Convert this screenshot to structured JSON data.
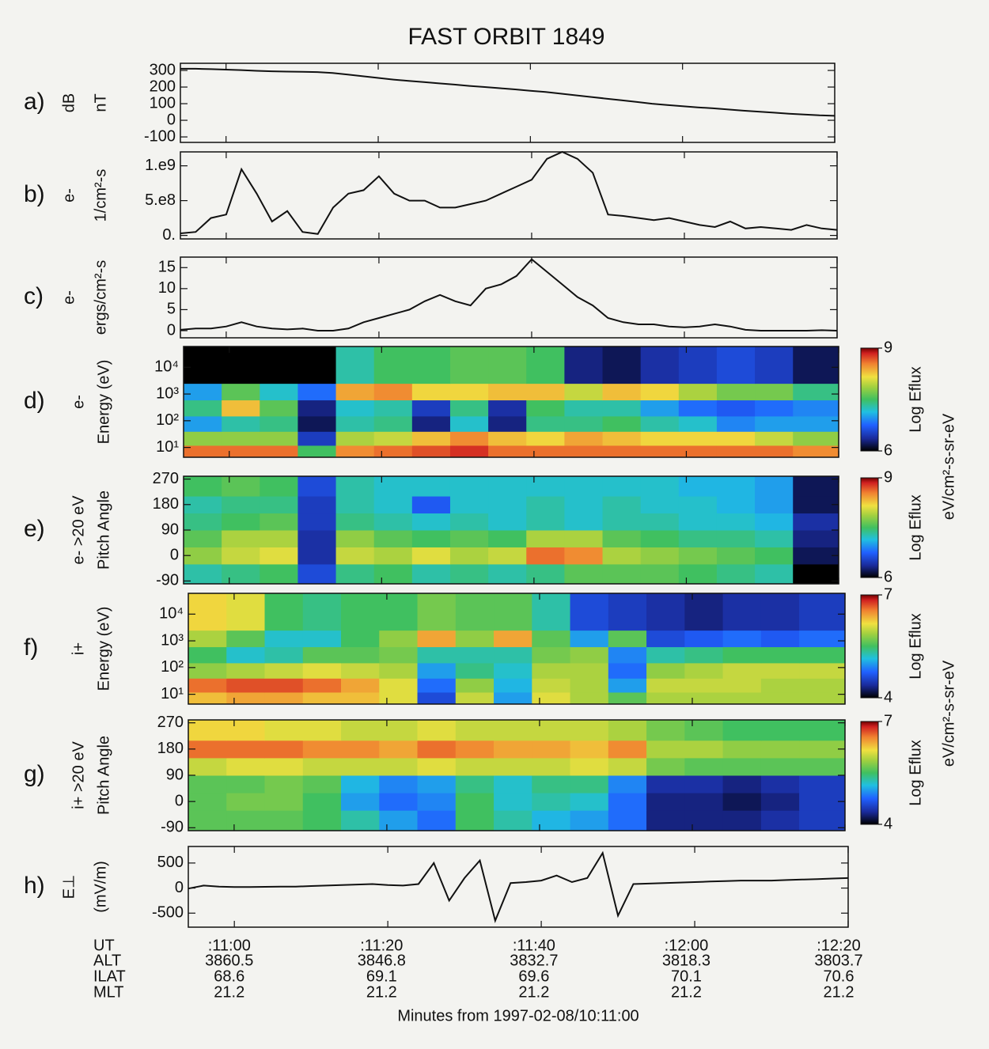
{
  "title": "FAST ORBIT 1849",
  "x_label": "Minutes from 1997-02-08/10:11:00",
  "time_axis": {
    "xlim": [
      -6,
      80
    ],
    "ticks": [
      {
        "value": 0,
        "label": ":11:00"
      },
      {
        "value": 20,
        "label": ":11:20"
      },
      {
        "value": 40,
        "label": ":11:40"
      },
      {
        "value": 60,
        "label": ":12:00"
      },
      {
        "value": 80,
        "label": ":12:20"
      }
    ],
    "row_labels": [
      "UT",
      "ALT",
      "ILAT",
      "MLT"
    ],
    "rows": [
      [
        3860.5,
        3846.8,
        3832.7,
        3818.3,
        3803.7
      ],
      [
        68.6,
        69.1,
        69.6,
        70.1,
        70.6
      ],
      [
        21.2,
        21.2,
        21.2,
        21.2,
        21.2
      ]
    ]
  },
  "chart_data": [
    {
      "type": "line",
      "label": "a)",
      "quantity": "dB",
      "ylabel": "nT",
      "color": "#111111",
      "xlim": [
        -6,
        80
      ],
      "ylim": [
        -133,
        343
      ],
      "yticks": [
        300,
        200,
        100,
        0,
        -100
      ],
      "x": [
        -6,
        -4,
        -2,
        0,
        2,
        4,
        6,
        8,
        10,
        12,
        14,
        16,
        18,
        20,
        22,
        24,
        26,
        28,
        30,
        32,
        34,
        36,
        38,
        40,
        42,
        44,
        46,
        48,
        50,
        52,
        54,
        56,
        58,
        60,
        62,
        64,
        66,
        68,
        70,
        72,
        74,
        76,
        78,
        80
      ],
      "values": [
        310,
        310,
        308,
        305,
        302,
        298,
        295,
        293,
        292,
        290,
        285,
        275,
        265,
        255,
        245,
        237,
        230,
        222,
        215,
        207,
        200,
        193,
        186,
        178,
        170,
        160,
        150,
        140,
        130,
        120,
        110,
        100,
        92,
        85,
        78,
        72,
        65,
        58,
        52,
        46,
        40,
        35,
        30,
        27
      ]
    },
    {
      "type": "line",
      "label": "b)",
      "quantity": "e-",
      "ylabel": "1/cm²-s",
      "color": "#111111",
      "xlim": [
        -6,
        80
      ],
      "ylim": [
        -50000000,
        1200000000
      ],
      "yticks": [
        {
          "value": 1000000000,
          "label": "1.e9"
        },
        {
          "value": 500000000,
          "label": "5.e8"
        },
        {
          "value": 0,
          "label": "0."
        }
      ],
      "x": [
        -6,
        -4,
        -2,
        0,
        2,
        4,
        6,
        8,
        10,
        12,
        14,
        16,
        18,
        20,
        22,
        24,
        26,
        28,
        30,
        32,
        34,
        36,
        38,
        40,
        42,
        44,
        46,
        48,
        50,
        52,
        54,
        56,
        58,
        60,
        62,
        64,
        66,
        68,
        70,
        72,
        74,
        76,
        78,
        80
      ],
      "values": [
        30000000.0,
        50000000.0,
        250000000.0,
        300000000.0,
        950000000.0,
        600000000.0,
        200000000.0,
        350000000.0,
        50000000.0,
        20000000.0,
        400000000.0,
        600000000.0,
        650000000.0,
        850000000.0,
        600000000.0,
        500000000.0,
        500000000.0,
        400000000.0,
        400000000.0,
        450000000.0,
        500000000.0,
        600000000.0,
        700000000.0,
        800000000.0,
        1100000000.0,
        1200000000.0,
        1100000000.0,
        900000000.0,
        300000000.0,
        280000000.0,
        250000000.0,
        220000000.0,
        250000000.0,
        200000000.0,
        150000000.0,
        120000000.0,
        200000000.0,
        100000000.0,
        120000000.0,
        100000000.0,
        80000000.0,
        150000000.0,
        100000000.0,
        80000000.0
      ]
    },
    {
      "type": "line",
      "label": "c)",
      "quantity": "e-",
      "ylabel": "ergs/cm²-s",
      "color": "#111111",
      "xlim": [
        -6,
        80
      ],
      "ylim": [
        -1.7,
        17.5
      ],
      "yticks": [
        15,
        10,
        5,
        0
      ],
      "x": [
        -6,
        -4,
        -2,
        0,
        2,
        4,
        6,
        8,
        10,
        12,
        14,
        16,
        18,
        20,
        22,
        24,
        26,
        28,
        30,
        32,
        34,
        36,
        38,
        40,
        42,
        44,
        46,
        48,
        50,
        52,
        54,
        56,
        58,
        60,
        62,
        64,
        66,
        68,
        70,
        72,
        74,
        76,
        78,
        80
      ],
      "values": [
        0.2,
        0.5,
        0.5,
        1,
        2,
        1,
        0.5,
        0.3,
        0.5,
        0,
        0,
        0.5,
        2,
        3,
        4,
        5,
        7,
        8.5,
        7,
        6,
        10,
        11,
        13,
        17,
        14,
        11,
        8,
        6,
        3,
        2,
        1.5,
        1.5,
        1,
        0.8,
        1,
        1.5,
        1,
        0.2,
        0,
        0,
        0,
        0,
        0.1,
        0
      ]
    },
    {
      "type": "heatmap",
      "label": "d)",
      "quantity": "e-",
      "ylabel": "Energy (eV)",
      "colorbar_label": "Log Eflux",
      "colorbar_units": "eV/cm²-s-sr-eV",
      "xlim": [
        -6,
        80
      ],
      "ylim": [
        4.3,
        60000
      ],
      "ylog": true,
      "yticks": [
        {
          "value": 10000,
          "label": "10⁴"
        },
        {
          "value": 1000,
          "label": "10³"
        },
        {
          "value": 100,
          "label": "10²"
        },
        {
          "value": 10,
          "label": "10¹"
        }
      ],
      "clim": [
        6,
        9
      ],
      "cticks": [
        9,
        6
      ],
      "xbins": [
        -6,
        -1,
        4,
        9,
        14,
        19,
        24,
        29,
        34,
        39,
        44,
        49,
        54,
        59,
        64,
        69,
        74,
        80
      ],
      "ybins": [
        4.3,
        12,
        40,
        150,
        600,
        2500,
        60000
      ],
      "z": [
        [
          8.6,
          8.6,
          8.6,
          7.5,
          8.5,
          8.6,
          8.7,
          8.8,
          8.6,
          8.6,
          8.6,
          8.6,
          8.6,
          8.6,
          8.6,
          8.6,
          8.5
        ],
        [
          7.8,
          7.8,
          7.8,
          6.5,
          7.9,
          8.0,
          8.3,
          8.5,
          8.3,
          8.2,
          8.4,
          8.3,
          8.2,
          8.2,
          8.2,
          8.0,
          7.8
        ],
        [
          7.0,
          7.3,
          7.4,
          6.2,
          7.3,
          7.4,
          6.3,
          7.2,
          6.3,
          7.4,
          7.4,
          7.5,
          7.3,
          7.2,
          6.9,
          7.0,
          7.0
        ],
        [
          7.4,
          8.3,
          7.6,
          6.3,
          7.2,
          7.3,
          6.5,
          7.4,
          6.4,
          7.5,
          7.3,
          7.3,
          7.0,
          6.8,
          6.7,
          6.8,
          6.9
        ],
        [
          7.0,
          7.6,
          7.2,
          6.8,
          8.4,
          8.5,
          8.2,
          8.2,
          8.3,
          8.3,
          8.0,
          8.3,
          8.2,
          7.9,
          7.7,
          7.7,
          7.4
        ],
        [
          6.0,
          6.0,
          6.0,
          6.0,
          7.3,
          7.5,
          7.5,
          7.6,
          7.6,
          7.5,
          6.3,
          6.2,
          6.4,
          6.5,
          6.6,
          6.5,
          6.2
        ]
      ]
    },
    {
      "type": "heatmap",
      "label": "e)",
      "quantity": "e- >20 eV",
      "ylabel": "Pitch Angle",
      "colorbar_label": "Log Eflux",
      "xlim": [
        -6,
        80
      ],
      "ylim": [
        -100,
        280
      ],
      "yticks": [
        270,
        180,
        90,
        0,
        -90
      ],
      "clim": [
        6,
        9
      ],
      "cticks": [
        9,
        6
      ],
      "xbins": [
        -6,
        -1,
        4,
        9,
        14,
        19,
        24,
        29,
        34,
        39,
        44,
        49,
        54,
        59,
        64,
        69,
        74,
        80
      ],
      "ybins": [
        -100,
        -30,
        30,
        90,
        150,
        210,
        280
      ],
      "z": [
        [
          7.3,
          7.4,
          7.5,
          6.6,
          7.4,
          7.5,
          7.3,
          7.4,
          7.3,
          7.4,
          7.6,
          7.6,
          7.6,
          7.5,
          7.4,
          7.3,
          6.0
        ],
        [
          7.8,
          8.0,
          8.1,
          6.4,
          8.0,
          7.9,
          8.1,
          7.9,
          8.0,
          8.6,
          8.5,
          7.9,
          7.8,
          7.7,
          7.6,
          7.5,
          6.2
        ],
        [
          7.6,
          7.9,
          7.9,
          6.4,
          7.8,
          7.6,
          7.5,
          7.6,
          7.5,
          7.9,
          7.9,
          7.6,
          7.5,
          7.4,
          7.4,
          7.3,
          6.3
        ],
        [
          7.4,
          7.5,
          7.6,
          6.5,
          7.4,
          7.3,
          7.2,
          7.3,
          7.2,
          7.3,
          7.2,
          7.3,
          7.3,
          7.2,
          7.2,
          7.1,
          6.4
        ],
        [
          7.3,
          7.4,
          7.4,
          6.5,
          7.3,
          7.2,
          6.7,
          7.2,
          7.2,
          7.3,
          7.2,
          7.3,
          7.2,
          7.2,
          7.1,
          7.0,
          6.2
        ],
        [
          7.5,
          7.6,
          7.5,
          6.6,
          7.3,
          7.2,
          7.2,
          7.2,
          7.2,
          7.2,
          7.2,
          7.2,
          7.2,
          7.1,
          7.1,
          7.0,
          6.2
        ]
      ]
    },
    {
      "type": "heatmap",
      "label": "f)",
      "quantity": "i+",
      "ylabel": "Energy (eV)",
      "colorbar_label": "Log Eflux",
      "colorbar_units": "eV/cm²-s-sr-eV",
      "xlim": [
        -6,
        80
      ],
      "ylim": [
        4.3,
        60000
      ],
      "ylog": true,
      "yticks": [
        {
          "value": 10000,
          "label": "10⁴"
        },
        {
          "value": 1000,
          "label": "10³"
        },
        {
          "value": 100,
          "label": "10²"
        },
        {
          "value": 10,
          "label": "10¹"
        }
      ],
      "clim": [
        4,
        7
      ],
      "cticks": [
        7,
        4
      ],
      "xbins": [
        -6,
        -1,
        4,
        9,
        14,
        19,
        24,
        29,
        34,
        39,
        44,
        49,
        54,
        59,
        64,
        69,
        74,
        80
      ],
      "ybins": [
        4.3,
        12,
        40,
        150,
        600,
        2500,
        60000
      ],
      "z": [
        [
          6.3,
          6.4,
          6.4,
          6.3,
          6.3,
          6.1,
          4.6,
          6.0,
          5.0,
          6.1,
          5.9,
          5.6,
          5.9,
          5.9,
          5.9,
          5.9,
          5.9
        ],
        [
          6.6,
          6.7,
          6.7,
          6.6,
          6.4,
          6.1,
          4.8,
          5.8,
          5.1,
          6.0,
          5.9,
          5.0,
          6.0,
          6.0,
          6.0,
          5.9,
          5.9
        ],
        [
          5.8,
          5.9,
          6.0,
          6.1,
          6.0,
          5.9,
          5.0,
          5.4,
          5.2,
          5.9,
          5.9,
          4.8,
          5.8,
          5.9,
          6.0,
          6.0,
          6.0
        ],
        [
          5.5,
          5.2,
          5.3,
          5.6,
          5.6,
          5.7,
          5.3,
          5.3,
          5.3,
          5.7,
          5.8,
          4.9,
          5.3,
          5.4,
          5.5,
          5.5,
          5.5
        ],
        [
          5.9,
          5.6,
          5.2,
          5.2,
          5.5,
          5.8,
          6.4,
          5.8,
          6.4,
          5.6,
          5.0,
          5.6,
          4.6,
          4.7,
          4.8,
          4.7,
          4.8
        ],
        [
          6.2,
          6.1,
          5.5,
          5.4,
          5.5,
          5.5,
          5.7,
          5.6,
          5.6,
          5.3,
          4.6,
          4.5,
          4.4,
          4.3,
          4.4,
          4.4,
          4.5
        ]
      ]
    },
    {
      "type": "heatmap",
      "label": "g)",
      "quantity": "i+ >20 eV",
      "ylabel": "Pitch Angle",
      "colorbar_label": "Log Eflux",
      "xlim": [
        -6,
        80
      ],
      "ylim": [
        -100,
        280
      ],
      "yticks": [
        270,
        180,
        90,
        0,
        -90
      ],
      "clim": [
        4,
        7
      ],
      "cticks": [
        7,
        4
      ],
      "xbins": [
        -6,
        -1,
        4,
        9,
        14,
        19,
        24,
        29,
        34,
        39,
        44,
        49,
        54,
        59,
        64,
        69,
        74,
        80
      ],
      "ybins": [
        -100,
        -30,
        30,
        90,
        150,
        210,
        280
      ],
      "z": [
        [
          5.6,
          5.6,
          5.6,
          5.5,
          5.3,
          5.0,
          4.8,
          5.5,
          5.3,
          5.1,
          5.0,
          4.8,
          4.3,
          4.3,
          4.3,
          4.4,
          4.5
        ],
        [
          5.6,
          5.7,
          5.7,
          5.5,
          5.0,
          4.8,
          4.9,
          5.5,
          5.2,
          5.3,
          5.2,
          4.8,
          4.3,
          4.3,
          4.2,
          4.3,
          4.5
        ],
        [
          5.6,
          5.6,
          5.7,
          5.6,
          5.1,
          4.9,
          5.0,
          5.4,
          5.2,
          5.4,
          5.4,
          4.9,
          4.4,
          4.4,
          4.3,
          4.4,
          4.5
        ],
        [
          6.0,
          6.1,
          6.1,
          6.0,
          6.0,
          6.0,
          6.1,
          6.0,
          6.0,
          6.0,
          6.1,
          6.0,
          5.7,
          5.6,
          5.6,
          5.6,
          5.6
        ],
        [
          6.6,
          6.6,
          6.6,
          6.5,
          6.5,
          6.4,
          6.6,
          6.5,
          6.4,
          6.4,
          6.3,
          6.5,
          5.9,
          5.9,
          5.8,
          5.8,
          5.8
        ],
        [
          6.2,
          6.2,
          6.1,
          6.1,
          6.0,
          6.0,
          6.1,
          6.0,
          6.0,
          6.0,
          6.0,
          5.9,
          5.7,
          5.6,
          5.5,
          5.5,
          5.5
        ]
      ]
    },
    {
      "type": "line",
      "label": "h)",
      "quantity": "E⊥",
      "ylabel": "(mV/m)",
      "color": "#111111",
      "xlim": [
        -6,
        80
      ],
      "ylim": [
        -780,
        830
      ],
      "yticks": [
        500,
        0,
        -500
      ],
      "x": [
        -6,
        -4,
        -2,
        0,
        2,
        4,
        6,
        8,
        10,
        12,
        14,
        16,
        18,
        20,
        22,
        24,
        26,
        28,
        30,
        32,
        34,
        36,
        38,
        40,
        42,
        44,
        46,
        48,
        50,
        52,
        54,
        56,
        58,
        60,
        62,
        64,
        66,
        68,
        70,
        72,
        74,
        76,
        78,
        80
      ],
      "values": [
        -10,
        50,
        30,
        20,
        20,
        25,
        30,
        30,
        40,
        50,
        60,
        70,
        80,
        60,
        50,
        80,
        500,
        -250,
        200,
        550,
        -650,
        100,
        120,
        150,
        250,
        120,
        200,
        700,
        -550,
        80,
        90,
        100,
        110,
        120,
        130,
        140,
        150,
        150,
        150,
        160,
        170,
        180,
        190,
        200
      ]
    }
  ]
}
